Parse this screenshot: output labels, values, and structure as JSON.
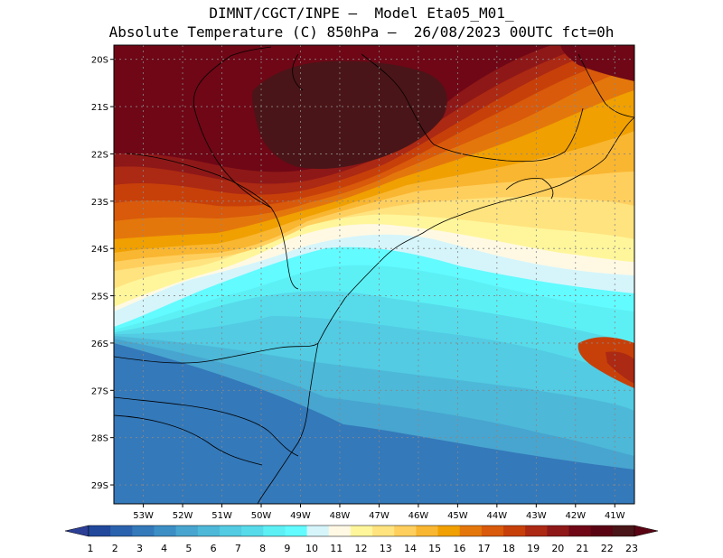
{
  "title": {
    "line1": "DIMNT/CGCT/INPE –  Model Eta05_M01_",
    "line2": "Absolute Temperature (C) 850hPa –  26/08/2023 00UTC fct=0h"
  },
  "map": {
    "lat_labels": [
      "20S",
      "21S",
      "22S",
      "23S",
      "24S",
      "25S",
      "26S",
      "27S",
      "28S",
      "29S"
    ],
    "lon_labels": [
      "53W",
      "52W",
      "51W",
      "50W",
      "49W",
      "48W",
      "47W",
      "46W",
      "45W",
      "44W",
      "43W",
      "42W",
      "41W"
    ],
    "lon_range": [
      -53.75,
      -40.5
    ],
    "lat_range": [
      -29.4,
      -19.7
    ],
    "grid": "dotted"
  },
  "colorbar": {
    "labels": [
      "1",
      "2",
      "3",
      "4",
      "5",
      "6",
      "7",
      "8",
      "9",
      "10",
      "11",
      "12",
      "13",
      "14",
      "15",
      "16",
      "17",
      "18",
      "19",
      "20",
      "21",
      "22",
      "23"
    ],
    "colors": [
      "#21489b",
      "#2b62ad",
      "#3479ba",
      "#3c8fc5",
      "#48a5cf",
      "#4db8d8",
      "#52cbe3",
      "#57dbea",
      "#5cf0f5",
      "#62fbff",
      "#d5f5fb",
      "#fff9e4",
      "#fff69b",
      "#ffe37f",
      "#ffcf5e",
      "#f9b631",
      "#f0a000",
      "#e4770c",
      "#d85a0a",
      "#c7400a",
      "#ac2913",
      "#8e1818",
      "#6f0716",
      "#5a0413",
      "#4a1518"
    ],
    "end_left_color": "#2c3f96",
    "end_right_color": "#5a0413"
  }
}
